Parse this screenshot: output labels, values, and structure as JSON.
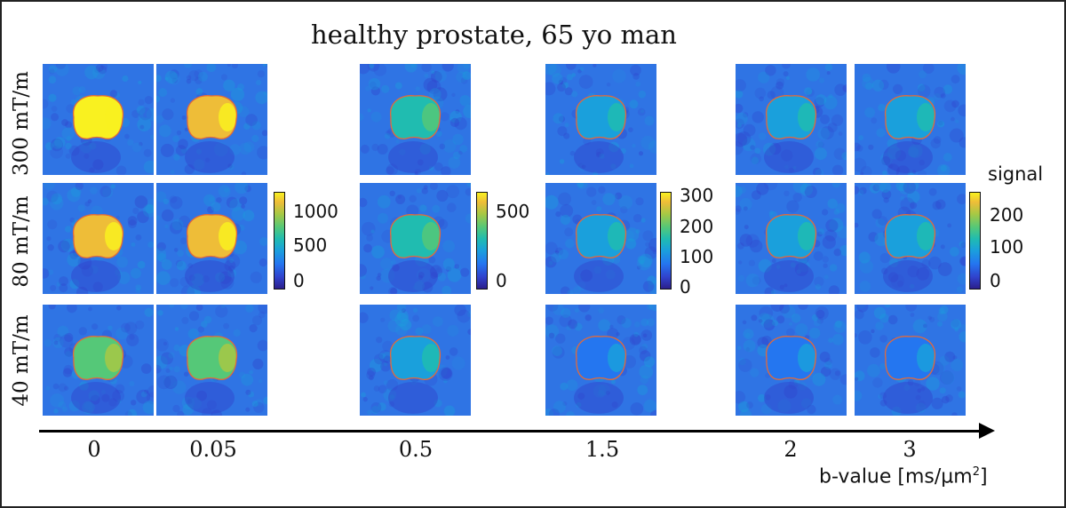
{
  "title": "healthy prostate, 65 yo man",
  "row_labels": [
    "300 mT/m",
    "80 mT/m",
    "40 mT/m"
  ],
  "b_values": [
    "0",
    "0.05",
    "0.5",
    "1.5",
    "2",
    "3"
  ],
  "axis": {
    "label_main": "b-value  [ms/µm",
    "label_sup": "2",
    "label_tail": "]"
  },
  "colorbars": [
    {
      "ticks": [
        "1000",
        "500",
        "0"
      ],
      "max": 1200
    },
    {
      "ticks": [
        "500",
        "0"
      ],
      "max": 640
    },
    {
      "ticks": [
        "300",
        "200",
        "100",
        "0"
      ],
      "max": 320
    },
    {
      "title": "signal",
      "ticks": [
        "200",
        "100",
        "0"
      ],
      "max": 255
    }
  ],
  "image_colors": {
    "background": "#2f74e4",
    "contour": "#e36a3a",
    "colormap": [
      "#2c1f8c",
      "#3042cc",
      "#2476f0",
      "#1aa0dc",
      "#20bcb0",
      "#55c878",
      "#a8c844",
      "#eebd38",
      "#f9f120"
    ]
  }
}
